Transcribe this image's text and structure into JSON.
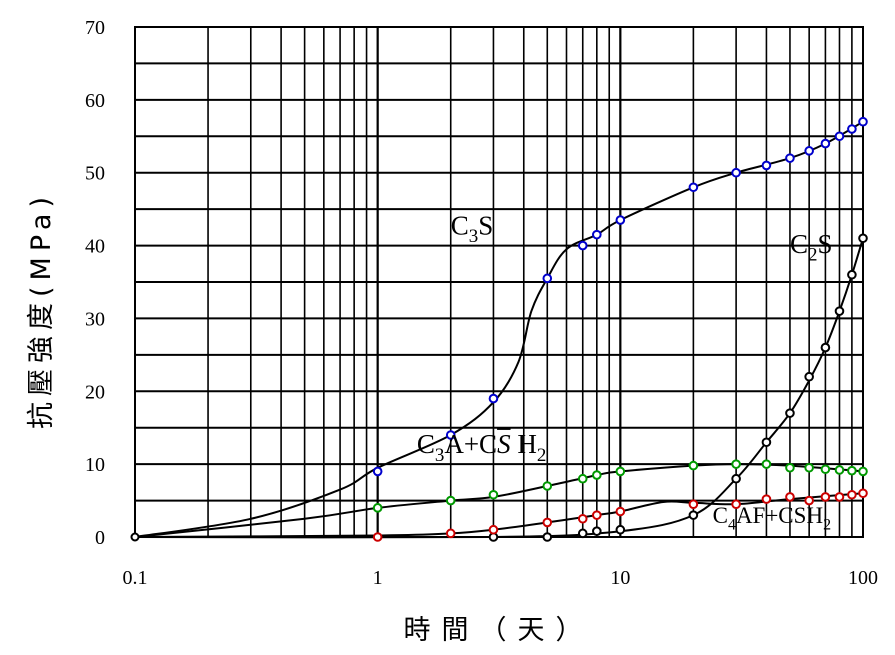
{
  "chart_data": {
    "type": "line",
    "title": "",
    "xlabel": "時間（天）",
    "xlabel_chars": [
      "時",
      "間",
      "（",
      "天",
      "）"
    ],
    "ylabel": "抗壓強度(MPa)",
    "x_scale": "log",
    "xlim": [
      0.1,
      100
    ],
    "ylim": [
      0,
      70
    ],
    "x_ticks": [
      0.1,
      1,
      10,
      100
    ],
    "x_tick_labels": [
      "0.1",
      "1",
      "10",
      "100"
    ],
    "y_ticks": [
      0,
      10,
      20,
      30,
      40,
      50,
      60,
      70
    ],
    "y_tick_labels": [
      "0",
      "10",
      "20",
      "30",
      "40",
      "50",
      "60",
      "70"
    ],
    "grid": true,
    "series": [
      {
        "id": "c3s",
        "name": "C3S",
        "label_parts": [
          [
            "C",
            "base"
          ],
          [
            "3",
            "sub"
          ],
          [
            "S",
            "base"
          ]
        ],
        "label_anchor": [
          2.0,
          41.5
        ],
        "color": "#0000cc",
        "points": [
          [
            1,
            9
          ],
          [
            2,
            14
          ],
          [
            3,
            19
          ],
          [
            5,
            35.5
          ],
          [
            7,
            40
          ],
          [
            8,
            41.5
          ],
          [
            10,
            43.5
          ],
          [
            20,
            48
          ],
          [
            30,
            50
          ],
          [
            40,
            51
          ],
          [
            50,
            52
          ],
          [
            60,
            53
          ],
          [
            70,
            54
          ],
          [
            80,
            55
          ],
          [
            90,
            56
          ],
          [
            100,
            57
          ]
        ],
        "curve": [
          [
            0.1,
            0
          ],
          [
            0.3,
            2.5
          ],
          [
            0.7,
            6.5
          ],
          [
            1,
            9.5
          ],
          [
            2,
            14
          ],
          [
            3,
            18.5
          ],
          [
            3.8,
            24
          ],
          [
            4.3,
            31
          ],
          [
            5,
            35.5
          ],
          [
            6,
            39.5
          ],
          [
            8,
            41.5
          ],
          [
            10,
            43.5
          ],
          [
            20,
            48
          ],
          [
            30,
            50
          ],
          [
            50,
            52
          ],
          [
            70,
            54
          ],
          [
            100,
            57
          ]
        ]
      },
      {
        "id": "c2s",
        "name": "C2S",
        "label_parts": [
          [
            "C",
            "base"
          ],
          [
            "2",
            "sub"
          ],
          [
            "S",
            "base"
          ]
        ],
        "label_anchor": [
          50,
          39
        ],
        "color": "#000000",
        "points": [
          [
            3,
            0
          ],
          [
            5,
            0
          ],
          [
            7,
            0.5
          ],
          [
            8,
            0.8
          ],
          [
            10,
            1
          ],
          [
            20,
            3
          ],
          [
            30,
            8
          ],
          [
            40,
            13
          ],
          [
            50,
            17
          ],
          [
            60,
            22
          ],
          [
            70,
            26
          ],
          [
            80,
            31
          ],
          [
            90,
            36
          ],
          [
            100,
            41
          ]
        ],
        "curve": [
          [
            0.1,
            0
          ],
          [
            3,
            0
          ],
          [
            10,
            0.8
          ],
          [
            20,
            3
          ],
          [
            30,
            8
          ],
          [
            40,
            13
          ],
          [
            50,
            17
          ],
          [
            60,
            21.5
          ],
          [
            70,
            26
          ],
          [
            80,
            31
          ],
          [
            90,
            36
          ],
          [
            100,
            41
          ]
        ]
      },
      {
        "id": "c3a",
        "name": "C3A+CS̄ H2",
        "label_parts": [
          [
            "C",
            "base"
          ],
          [
            "3",
            "sub"
          ],
          [
            "A+C",
            "base"
          ],
          [
            "S",
            "italic-bar"
          ],
          [
            "  H",
            "base"
          ],
          [
            "2",
            "sub"
          ]
        ],
        "label_anchor": [
          1.45,
          11.5
        ],
        "color": "#009900",
        "points": [
          [
            1,
            4
          ],
          [
            2,
            5
          ],
          [
            3,
            5.8
          ],
          [
            5,
            7
          ],
          [
            7,
            8
          ],
          [
            8,
            8.5
          ],
          [
            10,
            9
          ],
          [
            20,
            9.8
          ],
          [
            30,
            10
          ],
          [
            40,
            10
          ],
          [
            50,
            9.5
          ],
          [
            60,
            9.5
          ],
          [
            70,
            9.3
          ],
          [
            80,
            9.2
          ],
          [
            90,
            9.1
          ],
          [
            100,
            9
          ]
        ],
        "curve": [
          [
            0.1,
            0
          ],
          [
            0.5,
            2.5
          ],
          [
            1,
            4
          ],
          [
            2,
            5
          ],
          [
            3,
            5.5
          ],
          [
            5,
            7
          ],
          [
            8,
            8.5
          ],
          [
            10,
            9
          ],
          [
            20,
            9.8
          ],
          [
            30,
            10
          ],
          [
            50,
            9.8
          ],
          [
            100,
            9
          ]
        ]
      },
      {
        "id": "c4af",
        "name": "C4AF+CSH2",
        "label_parts": [
          [
            "C",
            "base"
          ],
          [
            "4",
            "sub"
          ],
          [
            "AF+CSH",
            "base"
          ],
          [
            "2",
            "sub"
          ]
        ],
        "label_anchor": [
          24,
          1.9
        ],
        "color": "#cc0000",
        "points": [
          [
            1,
            0
          ],
          [
            2,
            0.5
          ],
          [
            3,
            1
          ],
          [
            5,
            2
          ],
          [
            7,
            2.5
          ],
          [
            8,
            3
          ],
          [
            10,
            3.5
          ],
          [
            20,
            4.5
          ],
          [
            30,
            4.5
          ],
          [
            40,
            5.2
          ],
          [
            50,
            5.5
          ],
          [
            60,
            5
          ],
          [
            70,
            5.5
          ],
          [
            80,
            5.5
          ],
          [
            90,
            5.8
          ],
          [
            100,
            6
          ]
        ],
        "curve": [
          [
            0.1,
            0
          ],
          [
            1,
            0.2
          ],
          [
            2,
            0.5
          ],
          [
            3,
            1
          ],
          [
            5,
            2
          ],
          [
            8,
            3
          ],
          [
            10,
            3.5
          ],
          [
            15,
            4.8
          ],
          [
            20,
            4.7
          ],
          [
            30,
            4.5
          ],
          [
            50,
            5.2
          ],
          [
            100,
            6
          ]
        ]
      }
    ]
  }
}
